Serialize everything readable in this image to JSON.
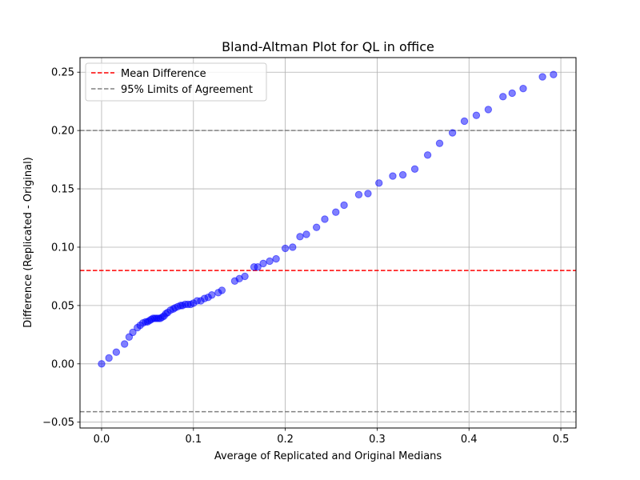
{
  "chart_data": {
    "type": "scatter",
    "title": "Bland-Altman Plot for QL in office",
    "xlabel": "Average of Replicated and Original Medians",
    "ylabel": "Difference (Replicated - Original)",
    "xlim": [
      -0.0235,
      0.5165
    ],
    "ylim": [
      -0.055,
      0.2625
    ],
    "x_ticks": [
      0.0,
      0.1,
      0.2,
      0.3,
      0.4,
      0.5
    ],
    "x_tick_labels": [
      "0.0",
      "0.1",
      "0.2",
      "0.3",
      "0.4",
      "0.5"
    ],
    "y_ticks": [
      -0.05,
      0.0,
      0.05,
      0.1,
      0.15,
      0.2,
      0.25
    ],
    "y_tick_labels": [
      "−0.05",
      "0.00",
      "0.05",
      "0.10",
      "0.15",
      "0.20",
      "0.25"
    ],
    "grid": true,
    "legend_position": "top-left",
    "marker_color": "#0000ff",
    "marker_alpha": 0.5,
    "points": [
      [
        0.0,
        0.0
      ],
      [
        0.008,
        0.005
      ],
      [
        0.016,
        0.01
      ],
      [
        0.025,
        0.017
      ],
      [
        0.03,
        0.023
      ],
      [
        0.034,
        0.027
      ],
      [
        0.039,
        0.031
      ],
      [
        0.042,
        0.033
      ],
      [
        0.045,
        0.035
      ],
      [
        0.048,
        0.036
      ],
      [
        0.05,
        0.036
      ],
      [
        0.052,
        0.037
      ],
      [
        0.054,
        0.038
      ],
      [
        0.056,
        0.039
      ],
      [
        0.058,
        0.039
      ],
      [
        0.06,
        0.039
      ],
      [
        0.062,
        0.039
      ],
      [
        0.064,
        0.039
      ],
      [
        0.066,
        0.04
      ],
      [
        0.068,
        0.041
      ],
      [
        0.07,
        0.043
      ],
      [
        0.072,
        0.044
      ],
      [
        0.075,
        0.046
      ],
      [
        0.078,
        0.047
      ],
      [
        0.08,
        0.048
      ],
      [
        0.083,
        0.049
      ],
      [
        0.086,
        0.05
      ],
      [
        0.088,
        0.05
      ],
      [
        0.091,
        0.051
      ],
      [
        0.094,
        0.051
      ],
      [
        0.097,
        0.051
      ],
      [
        0.1,
        0.052
      ],
      [
        0.104,
        0.054
      ],
      [
        0.108,
        0.054
      ],
      [
        0.112,
        0.056
      ],
      [
        0.116,
        0.057
      ],
      [
        0.12,
        0.059
      ],
      [
        0.127,
        0.061
      ],
      [
        0.131,
        0.063
      ],
      [
        0.145,
        0.071
      ],
      [
        0.15,
        0.073
      ],
      [
        0.156,
        0.075
      ],
      [
        0.166,
        0.083
      ],
      [
        0.17,
        0.083
      ],
      [
        0.176,
        0.086
      ],
      [
        0.183,
        0.088
      ],
      [
        0.19,
        0.09
      ],
      [
        0.2,
        0.099
      ],
      [
        0.208,
        0.1
      ],
      [
        0.216,
        0.109
      ],
      [
        0.223,
        0.111
      ],
      [
        0.234,
        0.117
      ],
      [
        0.243,
        0.124
      ],
      [
        0.255,
        0.13
      ],
      [
        0.264,
        0.136
      ],
      [
        0.28,
        0.145
      ],
      [
        0.29,
        0.146
      ],
      [
        0.302,
        0.155
      ],
      [
        0.317,
        0.161
      ],
      [
        0.328,
        0.162
      ],
      [
        0.341,
        0.167
      ],
      [
        0.355,
        0.179
      ],
      [
        0.368,
        0.189
      ],
      [
        0.382,
        0.198
      ],
      [
        0.395,
        0.208
      ],
      [
        0.408,
        0.213
      ],
      [
        0.421,
        0.218
      ],
      [
        0.437,
        0.229
      ],
      [
        0.447,
        0.232
      ],
      [
        0.459,
        0.236
      ],
      [
        0.48,
        0.246
      ],
      [
        0.492,
        0.248
      ]
    ],
    "reference_lines": [
      {
        "name": "Mean Difference",
        "y": 0.08,
        "color": "#ff0000",
        "style": "dashed"
      },
      {
        "name": "95% Limits of Agreement",
        "y": 0.2,
        "color": "#808080",
        "style": "dashed"
      },
      {
        "name": "95% Limits of Agreement",
        "y": -0.041,
        "color": "#808080",
        "style": "dashed"
      }
    ],
    "legend": [
      {
        "label": "Mean Difference",
        "color": "#ff0000"
      },
      {
        "label": "95% Limits of Agreement",
        "color": "#808080"
      }
    ]
  }
}
